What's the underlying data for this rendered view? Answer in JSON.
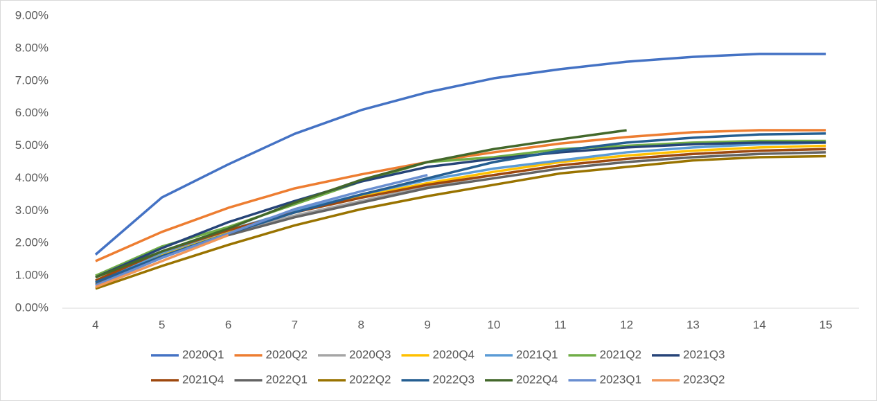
{
  "chart_data": {
    "type": "line",
    "x": [
      4,
      5,
      6,
      7,
      8,
      9,
      10,
      11,
      12,
      13,
      14,
      15
    ],
    "xlim": [
      3.5,
      15.5
    ],
    "xticks": [
      4,
      5,
      6,
      7,
      8,
      9,
      10,
      11,
      12,
      13,
      14,
      15
    ],
    "ylim": [
      0,
      9
    ],
    "yticks": [
      {
        "value": 0,
        "label": "0.00%"
      },
      {
        "value": 1,
        "label": "1.00%"
      },
      {
        "value": 2,
        "label": "2.00%"
      },
      {
        "value": 3,
        "label": "3.00%"
      },
      {
        "value": 4,
        "label": "4.00%"
      },
      {
        "value": 5,
        "label": "5.00%"
      },
      {
        "value": 6,
        "label": "6.00%"
      },
      {
        "value": 7,
        "label": "7.00%"
      },
      {
        "value": 8,
        "label": "8.00%"
      },
      {
        "value": 9,
        "label": "9.00%"
      }
    ],
    "grid": false,
    "legend": "bottom",
    "series": [
      {
        "name": "2020Q1",
        "color": "#4472c4",
        "values": [
          1.65,
          3.41,
          4.43,
          5.37,
          6.1,
          6.65,
          7.08,
          7.36,
          7.59,
          7.74,
          7.83,
          7.83
        ]
      },
      {
        "name": "2020Q2",
        "color": "#ed7d31",
        "values": [
          1.45,
          2.35,
          3.09,
          3.69,
          4.12,
          4.5,
          4.8,
          5.07,
          5.27,
          5.42,
          5.48,
          5.48
        ]
      },
      {
        "name": "2020Q3",
        "color": "#a5a5a5",
        "values": [
          0.7,
          1.6,
          2.3,
          2.85,
          3.3,
          3.75,
          4.1,
          4.4,
          4.6,
          4.75,
          4.85,
          4.9
        ]
      },
      {
        "name": "2020Q4",
        "color": "#ffc000",
        "values": [
          0.75,
          1.65,
          2.35,
          2.95,
          3.45,
          3.85,
          4.2,
          4.5,
          4.7,
          4.85,
          4.95,
          5.0
        ]
      },
      {
        "name": "2021Q1",
        "color": "#5b9bd5",
        "values": [
          0.8,
          1.7,
          2.4,
          3.0,
          3.5,
          3.95,
          4.3,
          4.55,
          4.8,
          4.95,
          5.05,
          5.1
        ]
      },
      {
        "name": "2021Q2",
        "color": "#70ad47",
        "values": [
          1.0,
          1.9,
          2.5,
          3.2,
          3.9,
          4.5,
          4.65,
          4.9,
          5.0,
          5.1,
          5.15,
          5.15
        ]
      },
      {
        "name": "2021Q3",
        "color": "#264478",
        "values": [
          0.95,
          1.85,
          2.65,
          3.3,
          3.9,
          4.35,
          4.6,
          4.8,
          4.95,
          5.05,
          5.1,
          5.1
        ]
      },
      {
        "name": "2021Q4",
        "color": "#9e480e",
        "values": [
          0.85,
          1.75,
          2.4,
          2.95,
          3.4,
          3.8,
          4.1,
          4.4,
          4.6,
          4.75,
          4.85,
          4.9
        ]
      },
      {
        "name": "2022Q1",
        "color": "#636363",
        "values": [
          0.75,
          1.6,
          2.25,
          2.8,
          3.25,
          3.7,
          4.0,
          4.3,
          4.5,
          4.65,
          4.75,
          4.8
        ]
      },
      {
        "name": "2022Q2",
        "color": "#997300",
        "values": [
          0.6,
          1.3,
          1.95,
          2.55,
          3.05,
          3.45,
          3.8,
          4.15,
          4.35,
          4.55,
          4.65,
          4.68
        ]
      },
      {
        "name": "2022Q3",
        "color": "#255e91",
        "values": [
          0.8,
          1.6,
          2.3,
          2.95,
          3.5,
          4.0,
          4.5,
          4.85,
          5.1,
          5.25,
          5.35,
          5.38
        ]
      },
      {
        "name": "2022Q4",
        "color": "#43682b",
        "values": [
          0.95,
          1.75,
          2.45,
          3.25,
          3.95,
          4.5,
          4.9,
          5.2,
          5.48,
          null,
          null,
          null
        ]
      },
      {
        "name": "2023Q1",
        "color": "#698ed0",
        "values": [
          0.7,
          1.55,
          2.3,
          3.05,
          3.6,
          4.1,
          null,
          null,
          null,
          null,
          null,
          null
        ]
      },
      {
        "name": "2023Q2",
        "color": "#f1975a",
        "values": [
          0.65,
          1.45,
          2.25,
          null,
          null,
          null,
          null,
          null,
          null,
          null,
          null,
          null
        ]
      }
    ]
  }
}
